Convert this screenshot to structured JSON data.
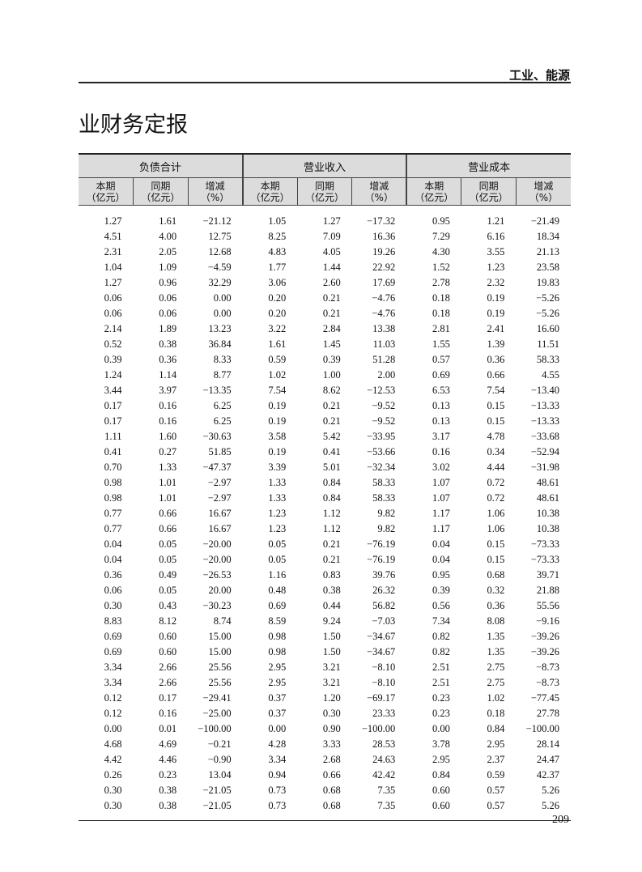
{
  "section_header": "工业、能源",
  "title": "业财务定报",
  "page_number": "209",
  "table": {
    "groups": [
      "负债合计",
      "营业收入",
      "营业成本"
    ],
    "sub_headers": [
      {
        "line1": "本期",
        "line2": "（亿元）"
      },
      {
        "line1": "同期",
        "line2": "（亿元）"
      },
      {
        "line1": "增减",
        "line2": "（%）"
      }
    ],
    "rows": [
      [
        "1.27",
        "1.61",
        "−21.12",
        "1.05",
        "1.27",
        "−17.32",
        "0.95",
        "1.21",
        "−21.49"
      ],
      [
        "4.51",
        "4.00",
        "12.75",
        "8.25",
        "7.09",
        "16.36",
        "7.29",
        "6.16",
        "18.34"
      ],
      [
        "2.31",
        "2.05",
        "12.68",
        "4.83",
        "4.05",
        "19.26",
        "4.30",
        "3.55",
        "21.13"
      ],
      [
        "1.04",
        "1.09",
        "−4.59",
        "1.77",
        "1.44",
        "22.92",
        "1.52",
        "1.23",
        "23.58"
      ],
      [
        "1.27",
        "0.96",
        "32.29",
        "3.06",
        "2.60",
        "17.69",
        "2.78",
        "2.32",
        "19.83"
      ],
      [
        "0.06",
        "0.06",
        "0.00",
        "0.20",
        "0.21",
        "−4.76",
        "0.18",
        "0.19",
        "−5.26"
      ],
      [
        "0.06",
        "0.06",
        "0.00",
        "0.20",
        "0.21",
        "−4.76",
        "0.18",
        "0.19",
        "−5.26"
      ],
      [
        "2.14",
        "1.89",
        "13.23",
        "3.22",
        "2.84",
        "13.38",
        "2.81",
        "2.41",
        "16.60"
      ],
      [
        "0.52",
        "0.38",
        "36.84",
        "1.61",
        "1.45",
        "11.03",
        "1.55",
        "1.39",
        "11.51"
      ],
      [
        "0.39",
        "0.36",
        "8.33",
        "0.59",
        "0.39",
        "51.28",
        "0.57",
        "0.36",
        "58.33"
      ],
      [
        "1.24",
        "1.14",
        "8.77",
        "1.02",
        "1.00",
        "2.00",
        "0.69",
        "0.66",
        "4.55"
      ],
      [
        "3.44",
        "3.97",
        "−13.35",
        "7.54",
        "8.62",
        "−12.53",
        "6.53",
        "7.54",
        "−13.40"
      ],
      [
        "0.17",
        "0.16",
        "6.25",
        "0.19",
        "0.21",
        "−9.52",
        "0.13",
        "0.15",
        "−13.33"
      ],
      [
        "0.17",
        "0.16",
        "6.25",
        "0.19",
        "0.21",
        "−9.52",
        "0.13",
        "0.15",
        "−13.33"
      ],
      [
        "1.11",
        "1.60",
        "−30.63",
        "3.58",
        "5.42",
        "−33.95",
        "3.17",
        "4.78",
        "−33.68"
      ],
      [
        "0.41",
        "0.27",
        "51.85",
        "0.19",
        "0.41",
        "−53.66",
        "0.16",
        "0.34",
        "−52.94"
      ],
      [
        "0.70",
        "1.33",
        "−47.37",
        "3.39",
        "5.01",
        "−32.34",
        "3.02",
        "4.44",
        "−31.98"
      ],
      [
        "0.98",
        "1.01",
        "−2.97",
        "1.33",
        "0.84",
        "58.33",
        "1.07",
        "0.72",
        "48.61"
      ],
      [
        "0.98",
        "1.01",
        "−2.97",
        "1.33",
        "0.84",
        "58.33",
        "1.07",
        "0.72",
        "48.61"
      ],
      [
        "0.77",
        "0.66",
        "16.67",
        "1.23",
        "1.12",
        "9.82",
        "1.17",
        "1.06",
        "10.38"
      ],
      [
        "0.77",
        "0.66",
        "16.67",
        "1.23",
        "1.12",
        "9.82",
        "1.17",
        "1.06",
        "10.38"
      ],
      [
        "0.04",
        "0.05",
        "−20.00",
        "0.05",
        "0.21",
        "−76.19",
        "0.04",
        "0.15",
        "−73.33"
      ],
      [
        "0.04",
        "0.05",
        "−20.00",
        "0.05",
        "0.21",
        "−76.19",
        "0.04",
        "0.15",
        "−73.33"
      ],
      [
        "0.36",
        "0.49",
        "−26.53",
        "1.16",
        "0.83",
        "39.76",
        "0.95",
        "0.68",
        "39.71"
      ],
      [
        "0.06",
        "0.05",
        "20.00",
        "0.48",
        "0.38",
        "26.32",
        "0.39",
        "0.32",
        "21.88"
      ],
      [
        "0.30",
        "0.43",
        "−30.23",
        "0.69",
        "0.44",
        "56.82",
        "0.56",
        "0.36",
        "55.56"
      ],
      [
        "8.83",
        "8.12",
        "8.74",
        "8.59",
        "9.24",
        "−7.03",
        "7.34",
        "8.08",
        "−9.16"
      ],
      [
        "0.69",
        "0.60",
        "15.00",
        "0.98",
        "1.50",
        "−34.67",
        "0.82",
        "1.35",
        "−39.26"
      ],
      [
        "0.69",
        "0.60",
        "15.00",
        "0.98",
        "1.50",
        "−34.67",
        "0.82",
        "1.35",
        "−39.26"
      ],
      [
        "3.34",
        "2.66",
        "25.56",
        "2.95",
        "3.21",
        "−8.10",
        "2.51",
        "2.75",
        "−8.73"
      ],
      [
        "3.34",
        "2.66",
        "25.56",
        "2.95",
        "3.21",
        "−8.10",
        "2.51",
        "2.75",
        "−8.73"
      ],
      [
        "0.12",
        "0.17",
        "−29.41",
        "0.37",
        "1.20",
        "−69.17",
        "0.23",
        "1.02",
        "−77.45"
      ],
      [
        "0.12",
        "0.16",
        "−25.00",
        "0.37",
        "0.30",
        "23.33",
        "0.23",
        "0.18",
        "27.78"
      ],
      [
        "0.00",
        "0.01",
        "−100.00",
        "0.00",
        "0.90",
        "−100.00",
        "0.00",
        "0.84",
        "−100.00"
      ],
      [
        "4.68",
        "4.69",
        "−0.21",
        "4.28",
        "3.33",
        "28.53",
        "3.78",
        "2.95",
        "28.14"
      ],
      [
        "4.42",
        "4.46",
        "−0.90",
        "3.34",
        "2.68",
        "24.63",
        "2.95",
        "2.37",
        "24.47"
      ],
      [
        "0.26",
        "0.23",
        "13.04",
        "0.94",
        "0.66",
        "42.42",
        "0.84",
        "0.59",
        "42.37"
      ],
      [
        "0.30",
        "0.38",
        "−21.05",
        "0.73",
        "0.68",
        "7.35",
        "0.60",
        "0.57",
        "5.26"
      ],
      [
        "0.30",
        "0.38",
        "−21.05",
        "0.73",
        "0.68",
        "7.35",
        "0.60",
        "0.57",
        "5.26"
      ]
    ]
  }
}
